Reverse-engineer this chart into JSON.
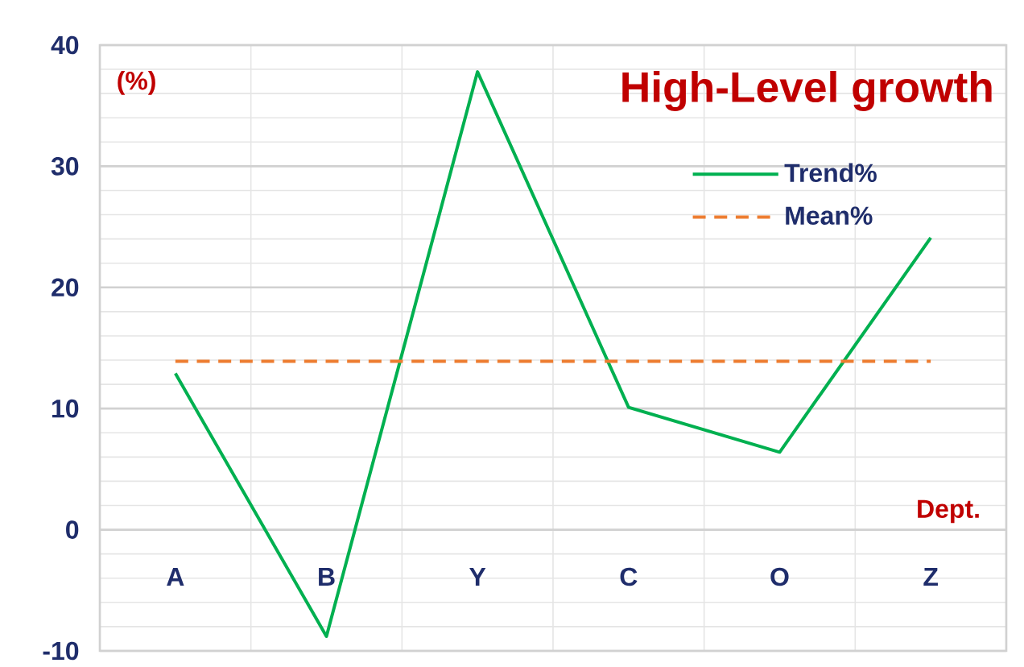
{
  "chart_data": {
    "type": "line",
    "title": "High-Level growth",
    "xlabel": "Dept.",
    "ylabel": "(%)",
    "categories": [
      "A",
      "B",
      "Y",
      "C",
      "O",
      "Z"
    ],
    "series": [
      {
        "name": "Trend%",
        "color": "#00b050",
        "line_style": "solid",
        "values": [
          12.9,
          -8.8,
          37.8,
          10.1,
          6.4,
          24.1
        ]
      },
      {
        "name": "Mean%",
        "color": "#ed7d31",
        "line_style": "dashed",
        "values": [
          13.9,
          13.9,
          13.9,
          13.9,
          13.9,
          13.9
        ]
      }
    ],
    "ylim": [
      -10,
      40
    ],
    "yticks": [
      -10,
      0,
      10,
      20,
      30,
      40
    ],
    "grid": true,
    "legend": "top right",
    "marker": "none"
  }
}
